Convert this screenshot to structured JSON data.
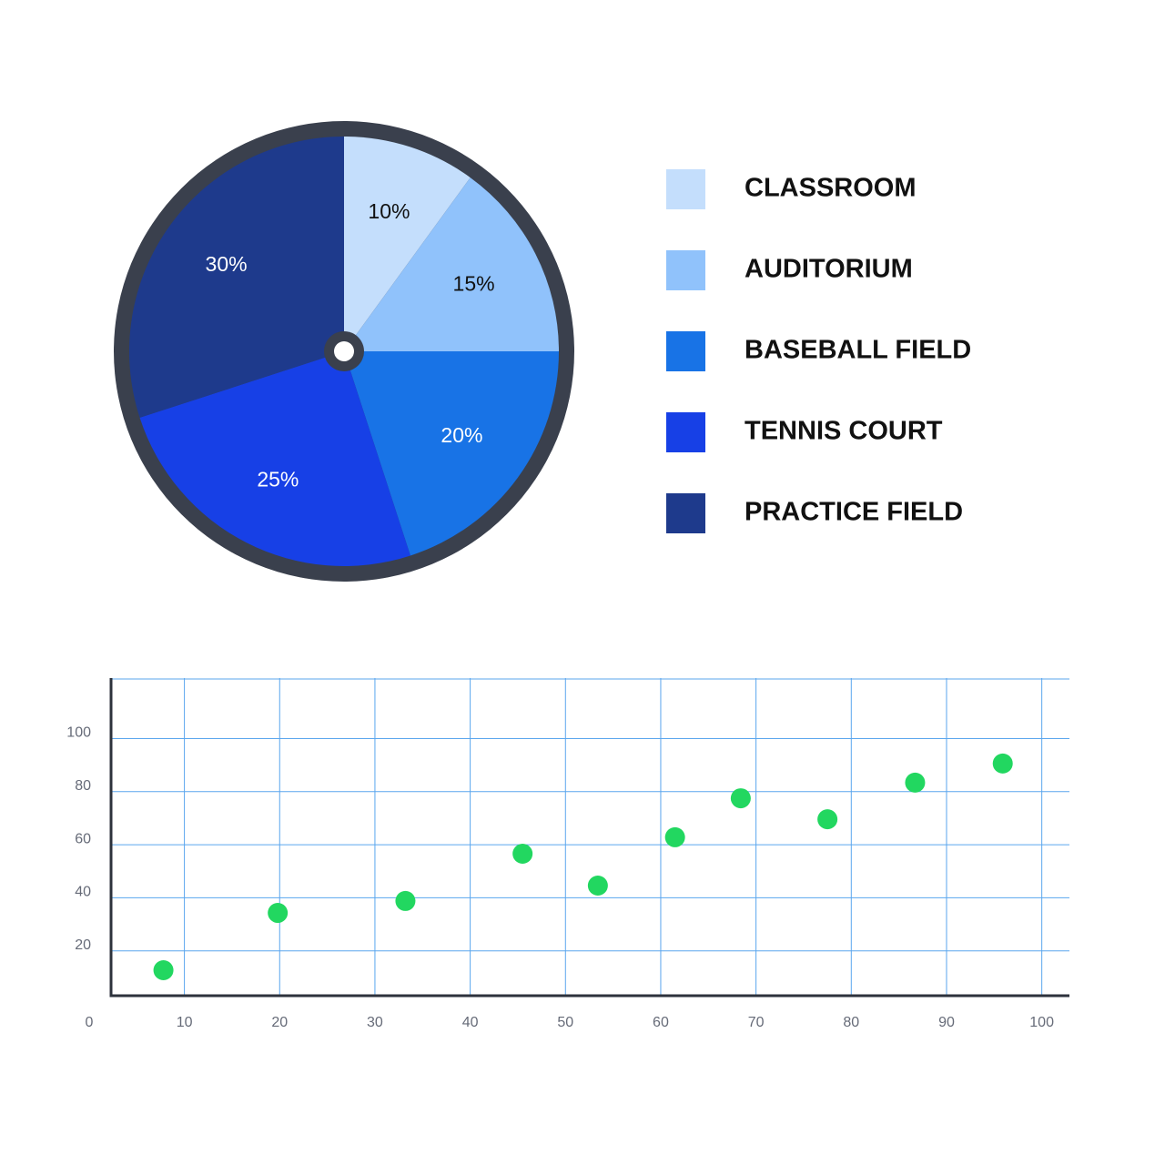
{
  "chart_data": [
    {
      "type": "pie",
      "categories": [
        "CLASSROOM",
        "AUDITORIUM",
        "BASEBALL FIELD",
        "TENNIS COURT",
        "PRACTICE FIELD"
      ],
      "values": [
        10,
        15,
        20,
        25,
        30
      ],
      "value_labels": [
        "10%",
        "15%",
        "20%",
        "25%",
        "30%"
      ],
      "colors": [
        "#c4defc",
        "#90c2fb",
        "#1873e6",
        "#1740e6",
        "#1e3a8c"
      ],
      "legend": "right"
    },
    {
      "type": "scatter",
      "series": [
        {
          "color": "#22d760",
          "x": [
            7.8,
            19.8,
            33.2,
            45.5,
            53.4,
            61.5,
            68.4,
            77.5,
            86.7,
            95.9
          ],
          "values": [
            12.7,
            34.3,
            38.8,
            56.6,
            44.6,
            62.8,
            77.5,
            69.6,
            83.4,
            90.6
          ]
        }
      ],
      "xlim": [
        2.3,
        102.9
      ],
      "xticks": [
        0,
        10,
        20,
        30,
        40,
        50,
        60,
        70,
        80,
        90,
        100
      ],
      "ylim": [
        3.1,
        122.8
      ],
      "yticks": [
        20,
        40,
        60,
        80,
        100
      ],
      "grid": true
    }
  ]
}
